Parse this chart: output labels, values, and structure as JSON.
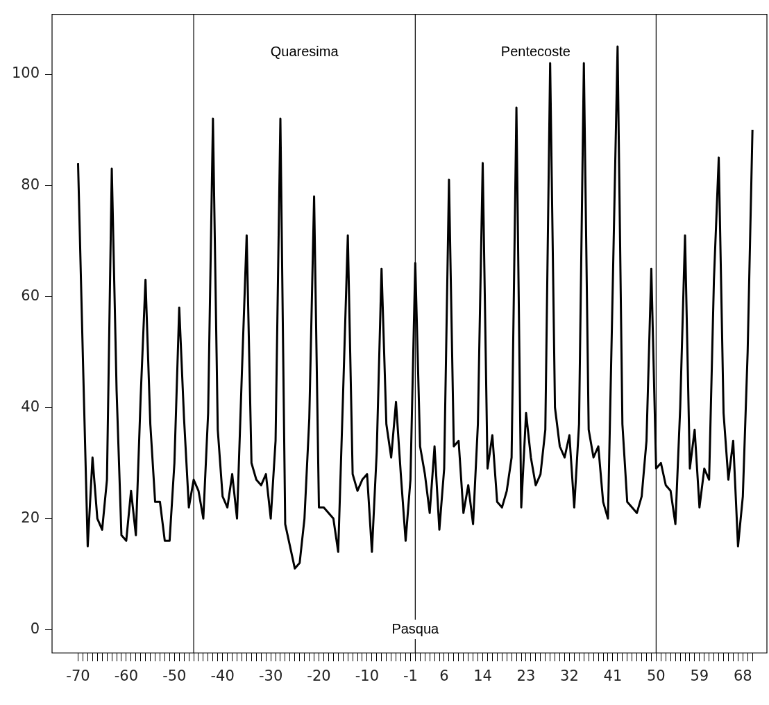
{
  "chart_data": {
    "type": "line",
    "color": "#000000",
    "x": [
      -70,
      -69,
      -68,
      -67,
      -66,
      -65,
      -64,
      -63,
      -62,
      -61,
      -60,
      -59,
      -58,
      -57,
      -56,
      -55,
      -54,
      -53,
      -52,
      -51,
      -50,
      -49,
      -48,
      -47,
      -46,
      -45,
      -44,
      -43,
      -42,
      -41,
      -40,
      -39,
      -38,
      -37,
      -36,
      -35,
      -34,
      -33,
      -32,
      -31,
      -30,
      -29,
      -28,
      -27,
      -26,
      -25,
      -24,
      -23,
      -22,
      -21,
      -20,
      -19,
      -18,
      -17,
      -16,
      -15,
      -14,
      -13,
      -12,
      -11,
      -10,
      -9,
      -8,
      -7,
      -6,
      -5,
      -4,
      -3,
      -2,
      -1,
      0,
      1,
      2,
      3,
      4,
      5,
      6,
      7,
      8,
      9,
      10,
      11,
      12,
      13,
      14,
      15,
      16,
      17,
      18,
      19,
      20,
      21,
      22,
      23,
      24,
      25,
      26,
      27,
      28,
      29,
      30,
      31,
      32,
      33,
      34,
      35,
      36,
      37,
      38,
      39,
      40,
      41,
      42,
      43,
      44,
      45,
      46,
      47,
      48,
      49,
      50,
      51,
      52,
      53,
      54,
      55,
      56,
      57,
      58,
      59,
      60,
      61,
      62,
      63,
      64,
      65,
      66,
      67,
      68,
      69,
      70
    ],
    "values": [
      84,
      49,
      15,
      31,
      20,
      18,
      27,
      83,
      43,
      17,
      16,
      25,
      17,
      42,
      63,
      37,
      23,
      23,
      16,
      16,
      30,
      58,
      38,
      22,
      27,
      25,
      20,
      39,
      92,
      36,
      24,
      22,
      28,
      20,
      46,
      71,
      30,
      27,
      26,
      28,
      20,
      34,
      92,
      19,
      15,
      11,
      12,
      20,
      38,
      78,
      22,
      22,
      21,
      20,
      14,
      42,
      71,
      28,
      25,
      27,
      28,
      14,
      32,
      65,
      37,
      31,
      41,
      28,
      16,
      27,
      66,
      33,
      28,
      21,
      33,
      18,
      29,
      81,
      33,
      34,
      21,
      26,
      19,
      37,
      84,
      29,
      35,
      23,
      22,
      25,
      31,
      94,
      22,
      39,
      31,
      26,
      28,
      36,
      102,
      40,
      33,
      31,
      35,
      22,
      37,
      102,
      36,
      31,
      33,
      23,
      20,
      62,
      105,
      37,
      23,
      22,
      21,
      24,
      34,
      65,
      29,
      30,
      26,
      25,
      19,
      40,
      71,
      29,
      36,
      22,
      29,
      27,
      63,
      85,
      39,
      27,
      34,
      15,
      24,
      50,
      90
    ],
    "xlim": [
      -75.4,
      73
    ],
    "xticks": [
      -70,
      {
        "value": -69,
        "label": null
      },
      {
        "value": -68,
        "label": null
      },
      {
        "value": -67,
        "label": null
      },
      {
        "value": -66,
        "label": null
      },
      {
        "value": -65,
        "label": null
      },
      {
        "value": -64,
        "label": null
      },
      {
        "value": -63,
        "label": null
      },
      {
        "value": -62,
        "label": null
      },
      {
        "value": -61,
        "label": null
      },
      -60,
      {
        "value": -59,
        "label": null
      },
      {
        "value": -58,
        "label": null
      },
      {
        "value": -57,
        "label": null
      },
      {
        "value": -56,
        "label": null
      },
      {
        "value": -55,
        "label": null
      },
      {
        "value": -54,
        "label": null
      },
      {
        "value": -53,
        "label": null
      },
      {
        "value": -52,
        "label": null
      },
      {
        "value": -51,
        "label": null
      },
      -50,
      {
        "value": -49,
        "label": null
      },
      {
        "value": -48,
        "label": null
      },
      {
        "value": -47,
        "label": null
      },
      {
        "value": -46,
        "label": null
      },
      {
        "value": -45,
        "label": null
      },
      {
        "value": -44,
        "label": null
      },
      {
        "value": -43,
        "label": null
      },
      {
        "value": -42,
        "label": null
      },
      {
        "value": -41,
        "label": null
      },
      -40,
      {
        "value": -39,
        "label": null
      },
      {
        "value": -38,
        "label": null
      },
      {
        "value": -37,
        "label": null
      },
      {
        "value": -36,
        "label": null
      },
      {
        "value": -35,
        "label": null
      },
      {
        "value": -34,
        "label": null
      },
      {
        "value": -33,
        "label": null
      },
      {
        "value": -32,
        "label": null
      },
      {
        "value": -31,
        "label": null
      },
      -30,
      {
        "value": -29,
        "label": null
      },
      {
        "value": -28,
        "label": null
      },
      {
        "value": -27,
        "label": null
      },
      {
        "value": -26,
        "label": null
      },
      {
        "value": -25,
        "label": null
      },
      {
        "value": -24,
        "label": null
      },
      {
        "value": -23,
        "label": null
      },
      {
        "value": -22,
        "label": null
      },
      {
        "value": -21,
        "label": null
      },
      -20,
      {
        "value": -19,
        "label": null
      },
      {
        "value": -18,
        "label": null
      },
      {
        "value": -17,
        "label": null
      },
      {
        "value": -16,
        "label": null
      },
      {
        "value": -15,
        "label": null
      },
      {
        "value": -14,
        "label": null
      },
      {
        "value": -13,
        "label": null
      },
      {
        "value": -12,
        "label": null
      },
      {
        "value": -11,
        "label": null
      },
      -10,
      {
        "value": -9,
        "label": null
      },
      {
        "value": -8,
        "label": null
      },
      {
        "value": -7,
        "label": null
      },
      {
        "value": -6,
        "label": null
      },
      {
        "value": -5,
        "label": null
      },
      {
        "value": -4,
        "label": null
      },
      {
        "value": -3,
        "label": null
      },
      {
        "value": -2,
        "label": null
      },
      -1,
      {
        "value": 0,
        "label": null
      },
      {
        "value": 1,
        "label": null
      },
      {
        "value": 2,
        "label": null
      },
      {
        "value": 3,
        "label": null
      },
      {
        "value": 4,
        "label": null
      },
      {
        "value": 5,
        "label": null
      },
      6,
      {
        "value": 7,
        "label": null
      },
      {
        "value": 8,
        "label": null
      },
      {
        "value": 9,
        "label": null
      },
      {
        "value": 10,
        "label": null
      },
      {
        "value": 11,
        "label": null
      },
      {
        "value": 12,
        "label": null
      },
      {
        "value": 13,
        "label": null
      },
      14,
      {
        "value": 15,
        "label": null
      },
      {
        "value": 16,
        "label": null
      },
      {
        "value": 17,
        "label": null
      },
      {
        "value": 18,
        "label": null
      },
      {
        "value": 19,
        "label": null
      },
      {
        "value": 20,
        "label": null
      },
      {
        "value": 21,
        "label": null
      },
      {
        "value": 22,
        "label": null
      },
      23,
      {
        "value": 24,
        "label": null
      },
      {
        "value": 25,
        "label": null
      },
      {
        "value": 26,
        "label": null
      },
      {
        "value": 27,
        "label": null
      },
      {
        "value": 28,
        "label": null
      },
      {
        "value": 29,
        "label": null
      },
      {
        "value": 30,
        "label": null
      },
      {
        "value": 31,
        "label": null
      },
      32,
      {
        "value": 33,
        "label": null
      },
      {
        "value": 34,
        "label": null
      },
      {
        "value": 35,
        "label": null
      },
      {
        "value": 36,
        "label": null
      },
      {
        "value": 37,
        "label": null
      },
      {
        "value": 38,
        "label": null
      },
      {
        "value": 39,
        "label": null
      },
      {
        "value": 40,
        "label": null
      },
      41,
      {
        "value": 42,
        "label": null
      },
      {
        "value": 43,
        "label": null
      },
      {
        "value": 44,
        "label": null
      },
      {
        "value": 45,
        "label": null
      },
      {
        "value": 46,
        "label": null
      },
      {
        "value": 47,
        "label": null
      },
      {
        "value": 48,
        "label": null
      },
      {
        "value": 49,
        "label": null
      },
      50,
      {
        "value": 51,
        "label": null
      },
      {
        "value": 52,
        "label": null
      },
      {
        "value": 53,
        "label": null
      },
      {
        "value": 54,
        "label": null
      },
      {
        "value": 55,
        "label": null
      },
      {
        "value": 56,
        "label": null
      },
      {
        "value": 57,
        "label": null
      },
      {
        "value": 58,
        "label": null
      },
      59,
      {
        "value": 60,
        "label": null
      },
      {
        "value": 61,
        "label": null
      },
      {
        "value": 62,
        "label": null
      },
      {
        "value": 63,
        "label": null
      },
      {
        "value": 64,
        "label": null
      },
      {
        "value": 65,
        "label": null
      },
      {
        "value": 66,
        "label": null
      },
      {
        "value": 67,
        "label": null
      },
      68,
      {
        "value": 69,
        "label": null
      },
      {
        "value": 70,
        "label": null
      }
    ],
    "ylim": [
      -4.2,
      110.8
    ],
    "yticks": [
      0,
      20,
      40,
      60,
      80,
      100
    ],
    "ref_lines": [
      {
        "axis": "x",
        "value": -46,
        "color": "#000000"
      },
      {
        "axis": "x",
        "value": 0,
        "label": "Pasqua",
        "color": "#000000"
      },
      {
        "axis": "x",
        "value": 50,
        "color": "#000000"
      }
    ],
    "annotations": [
      "Quaresima",
      "Pentecoste"
    ]
  }
}
